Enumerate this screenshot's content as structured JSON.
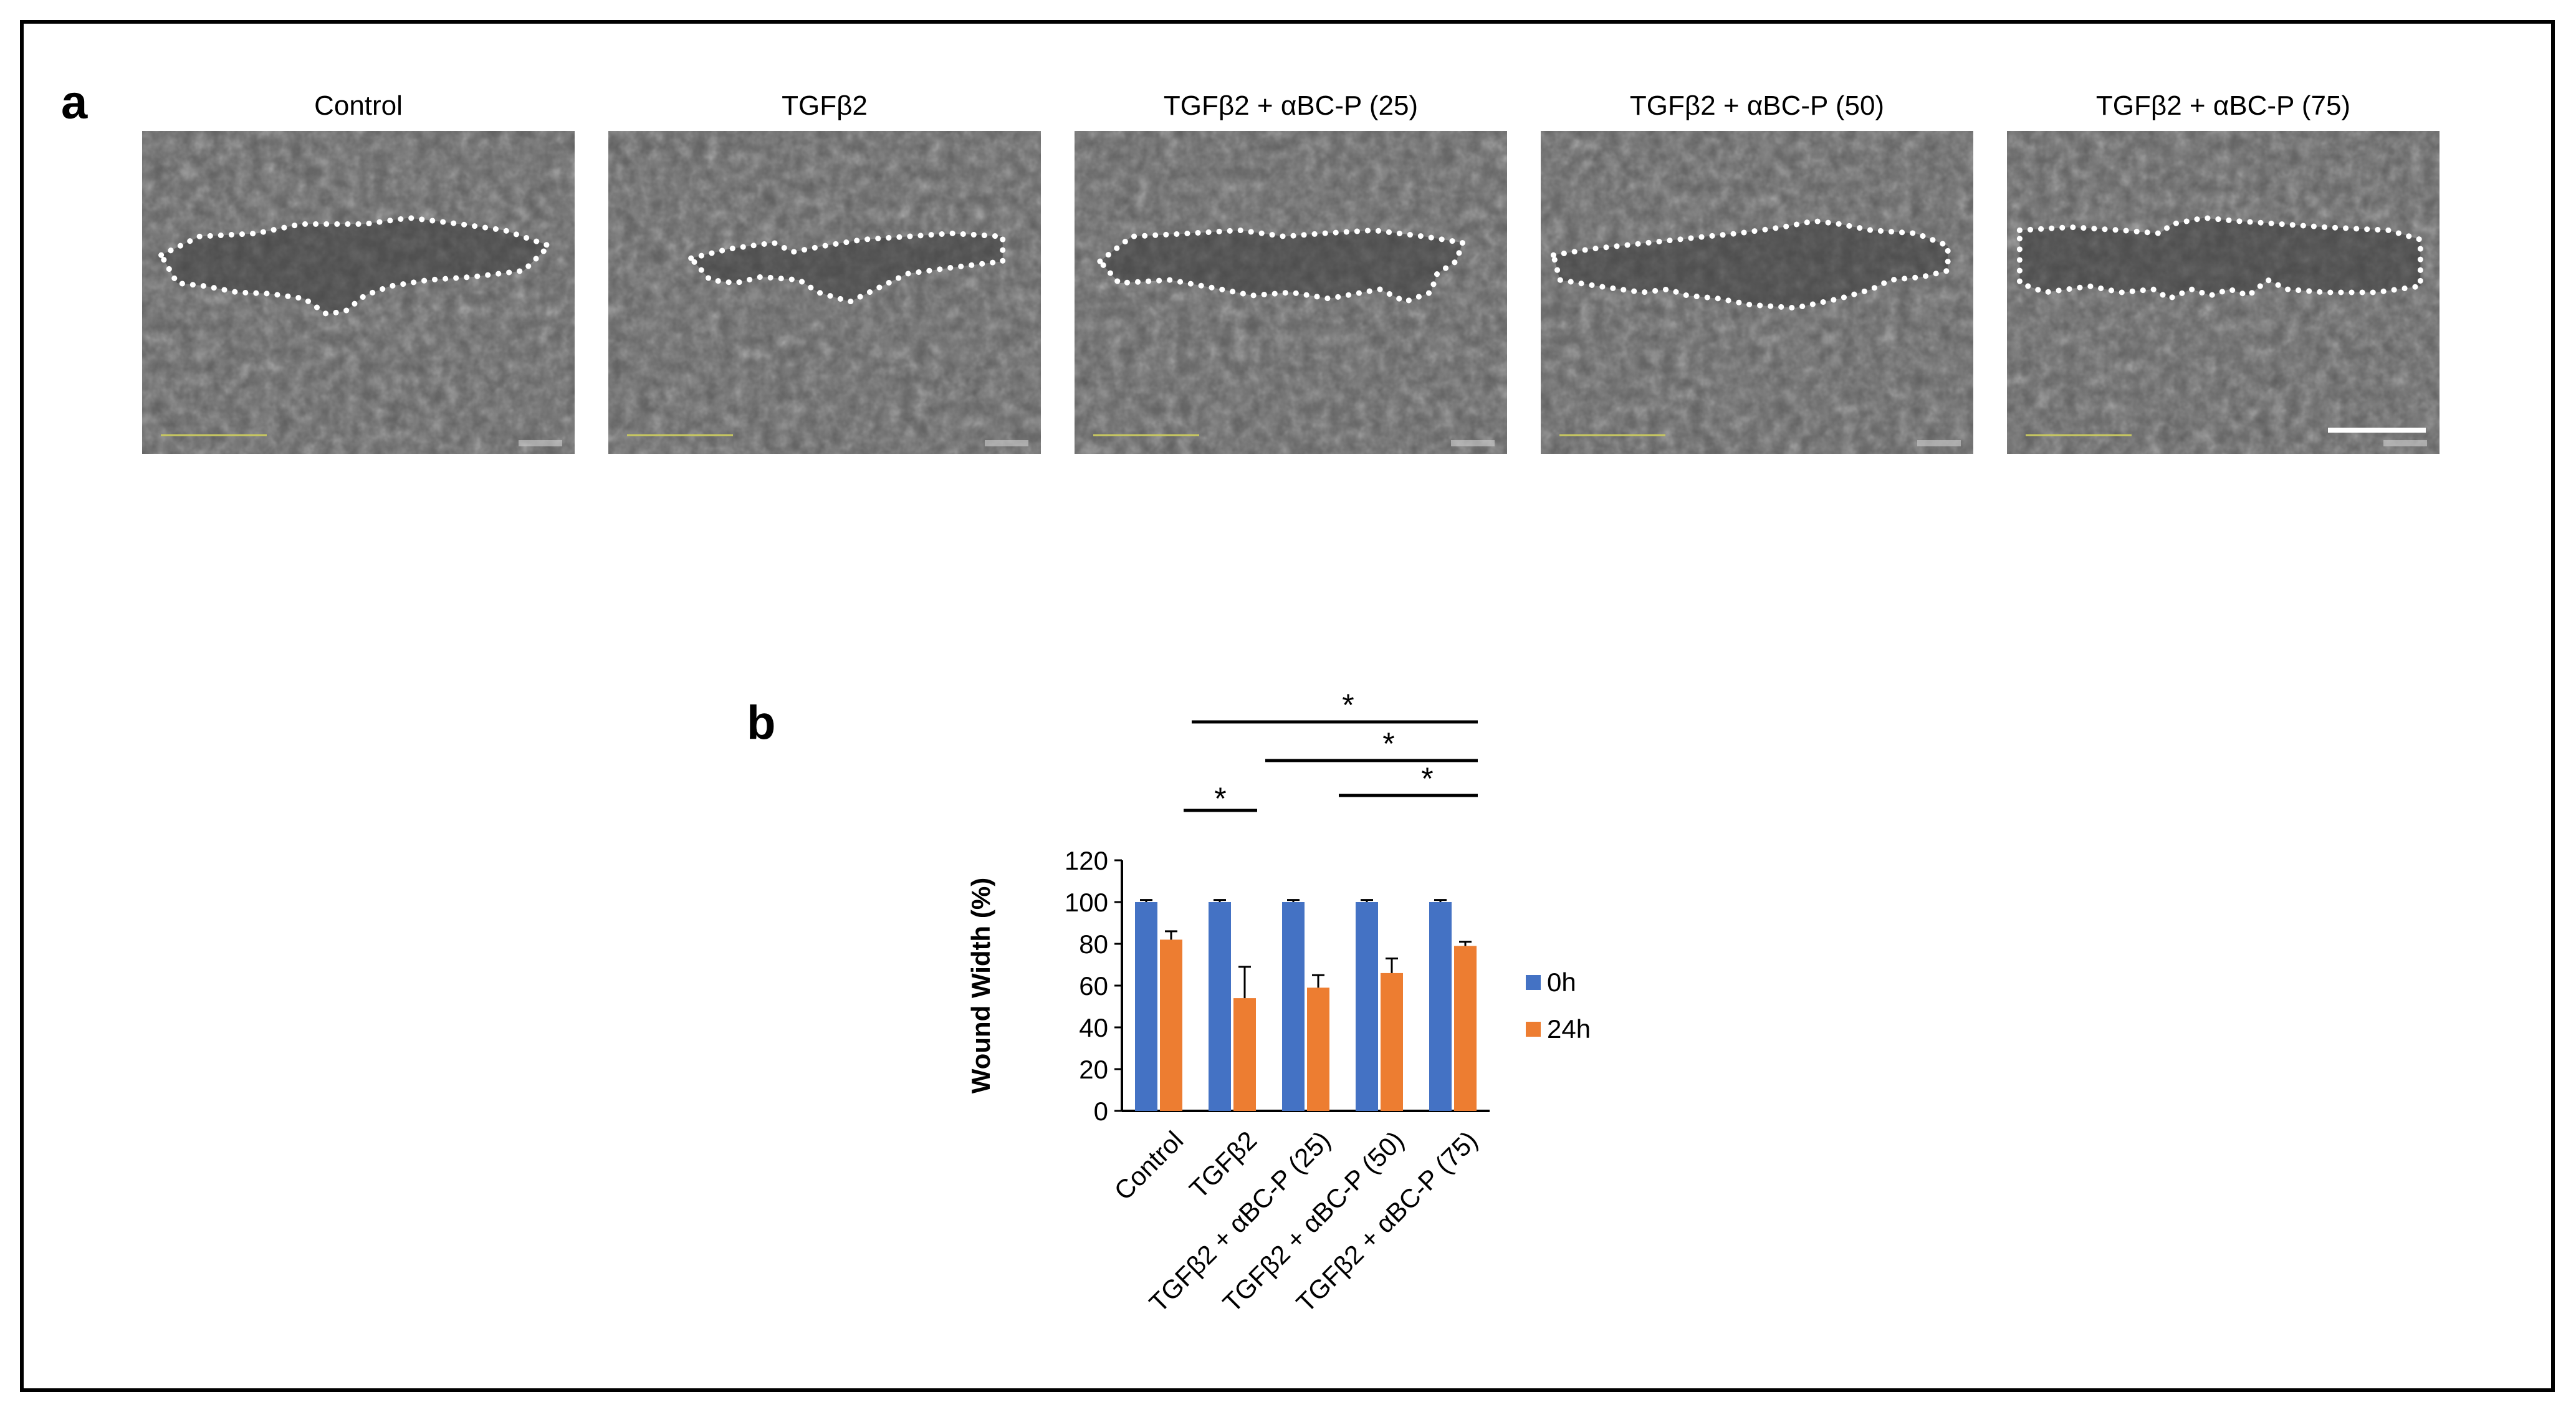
{
  "panel_a": {
    "label": "a",
    "images": [
      {
        "title": "Control"
      },
      {
        "title": "TGFβ2"
      },
      {
        "title": "TGFβ2 + αBC-P (25)"
      },
      {
        "title": "TGFβ2 + αBC-P (50)"
      },
      {
        "title": "TGFβ2 + αBC-P (75)"
      }
    ]
  },
  "panel_b": {
    "label": "b",
    "significance_marker": "*"
  },
  "chart_data": {
    "type": "bar",
    "title": "",
    "xlabel": "",
    "ylabel": "Wound Width (%)",
    "ylim": [
      0,
      120
    ],
    "yticks": [
      "0",
      "20",
      "40",
      "60",
      "80",
      "100",
      "120"
    ],
    "categories": [
      "Control",
      "TGFβ2",
      "TGFβ2 + αBC-P (25)",
      "TGFβ2 + αBC-P (50)",
      "TGFβ2 + αBC-P (75)"
    ],
    "series": [
      {
        "name": "0h",
        "color": "#4472C4",
        "values": [
          100,
          100,
          100,
          100,
          100
        ],
        "errors": [
          1,
          1,
          1,
          1,
          1
        ]
      },
      {
        "name": "24h",
        "color": "#ED7D31",
        "values": [
          82,
          54,
          59,
          66,
          79
        ],
        "errors": [
          4,
          15,
          6,
          7,
          2
        ]
      }
    ],
    "legend_position": "right",
    "grid": false,
    "significance_brackets": [
      {
        "from": "TGFβ2",
        "to": "TGFβ2 + αBC-P (75)",
        "label": "*"
      },
      {
        "from": "TGFβ2 + αBC-P (25)",
        "to": "TGFβ2 + αBC-P (75)",
        "label": "*"
      },
      {
        "from": "TGFβ2 + αBC-P (50)",
        "to": "TGFβ2 + αBC-P (75)",
        "label": "*"
      },
      {
        "from": "Control",
        "to": "TGFβ2",
        "label": "*"
      }
    ]
  }
}
